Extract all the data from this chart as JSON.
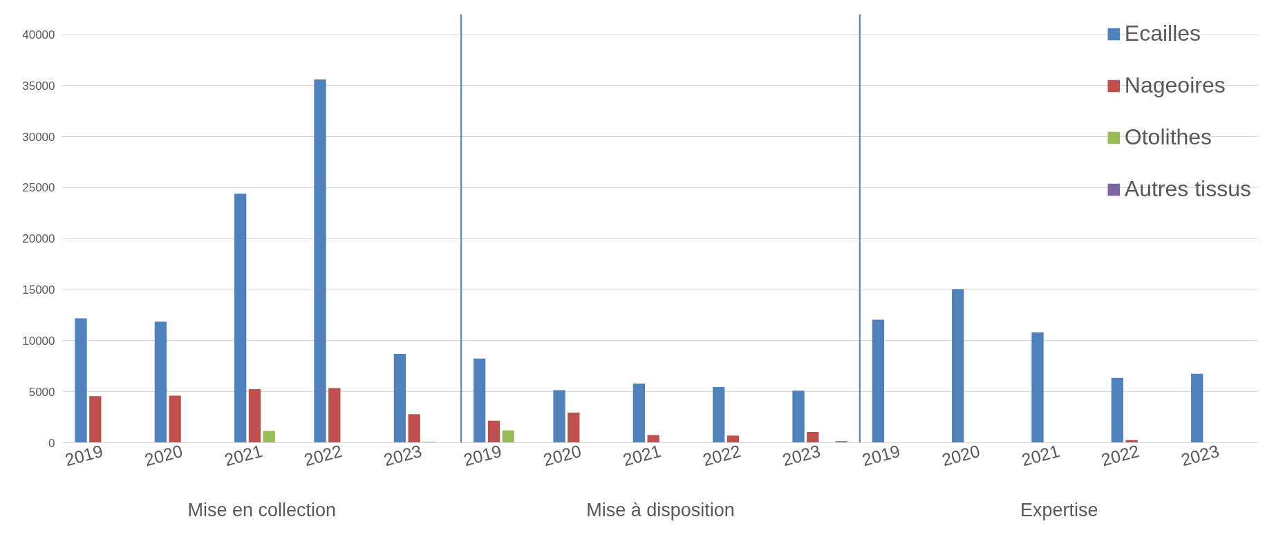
{
  "chart_data": {
    "type": "bar",
    "categories": [
      "2019",
      "2020",
      "2021",
      "2022",
      "2023",
      "2019",
      "2020",
      "2021",
      "2022",
      "2023",
      "2019",
      "2020",
      "2021",
      "2022",
      "2023"
    ],
    "series": [
      {
        "name": "Ecailles",
        "color": "#4f81bd",
        "values": [
          12200,
          11850,
          24400,
          35600,
          8700,
          8250,
          5150,
          5800,
          5450,
          5100,
          12050,
          15050,
          10800,
          6350,
          6750
        ]
      },
      {
        "name": "Nageoires",
        "color": "#c0504d",
        "values": [
          4550,
          4600,
          5250,
          5350,
          2800,
          2150,
          2950,
          750,
          700,
          1050,
          null,
          null,
          null,
          250,
          null
        ]
      },
      {
        "name": "Otolithes",
        "color": "#9bbb59",
        "values": [
          null,
          null,
          1150,
          null,
          80,
          1200,
          null,
          null,
          null,
          null,
          null,
          null,
          null,
          null,
          null
        ]
      },
      {
        "name": "Autres tissus",
        "color": "#8064a2",
        "values": [
          null,
          null,
          null,
          null,
          null,
          null,
          null,
          null,
          null,
          150,
          null,
          null,
          null,
          null,
          null
        ]
      }
    ],
    "annotations": [
      "Mise en collection",
      "Mise à disposition",
      "Expertise"
    ],
    "ylim": [
      0,
      42000
    ],
    "yticks": [
      0,
      5000,
      10000,
      15000,
      20000,
      25000,
      30000,
      35000,
      40000
    ],
    "grid": "y",
    "legend": "top right"
  }
}
